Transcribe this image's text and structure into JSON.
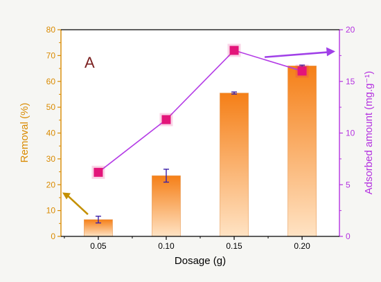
{
  "chart_data": {
    "type": "bar",
    "panel_label": "A",
    "xlabel": "Dosage (g)",
    "categories": [
      "0.05",
      "0.10",
      "0.15",
      "0.20"
    ],
    "y_left": {
      "label": "Removal (%)",
      "range": [
        0,
        80
      ],
      "ticks": [
        "0",
        "10",
        "20",
        "30",
        "40",
        "50",
        "60",
        "70",
        "80"
      ]
    },
    "y_right": {
      "label": "Adsorbed amount (mg.g⁻¹)",
      "range": [
        0,
        20
      ],
      "ticks": [
        "0",
        "5",
        "10",
        "15",
        "20"
      ]
    },
    "series": [
      {
        "kind": "bar",
        "axis": "left",
        "values": [
          6.5,
          23.5,
          55.5,
          66
        ],
        "error": [
          1.3,
          2.5,
          0.4,
          0.3
        ]
      },
      {
        "kind": "line",
        "axis": "right",
        "values": [
          6.2,
          11.3,
          18.0,
          16.0
        ]
      }
    ],
    "colors": {
      "left_axis": "#d98a00",
      "right_axis": "#b432e0",
      "bar_top": "#f57f17",
      "bar_bottom": "#ffe3c4",
      "marker": "#e3157a",
      "line": "#b43ce6",
      "error": "#3a1fa8",
      "arrow_left": "#c49000",
      "arrow_right": "#a040e8"
    }
  }
}
